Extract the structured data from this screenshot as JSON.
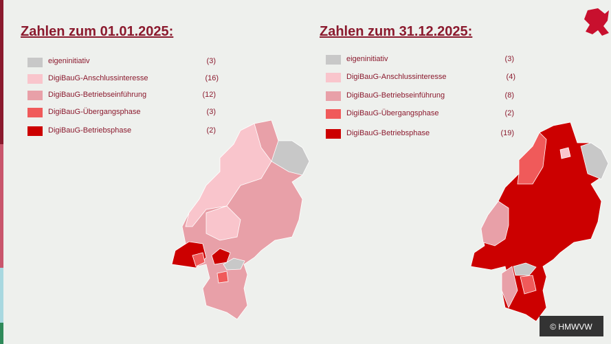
{
  "panels": [
    {
      "title": "Zahlen zum 01.01.2025:",
      "legend": [
        {
          "label": "eigeninitiativ",
          "count": "(3)"
        },
        {
          "label": "DigiBauG-Anschlussinteresse",
          "count": "(16)"
        },
        {
          "label": "DigiBauG-Betriebseinführung",
          "count": "(12)"
        },
        {
          "label": "DigiBauG-Übergangsphase",
          "count": "(3)"
        },
        {
          "label": "DigiBauG-Betriebsphase",
          "count": "(2)"
        }
      ]
    },
    {
      "title": "Zahlen zum 31.12.2025:",
      "legend": [
        {
          "label": "eigeninitiativ",
          "count": "(3)"
        },
        {
          "label": "DigiBauG-Anschlussinteresse",
          "count": "(4)"
        },
        {
          "label": "DigiBauG-Betriebseinführung",
          "count": "(8)"
        },
        {
          "label": "DigiBauG-Übergangsphase",
          "count": "(2)"
        },
        {
          "label": "DigiBauG-Betriebsphase",
          "count": "(19)"
        }
      ]
    }
  ],
  "credit": "© HMWVW"
}
